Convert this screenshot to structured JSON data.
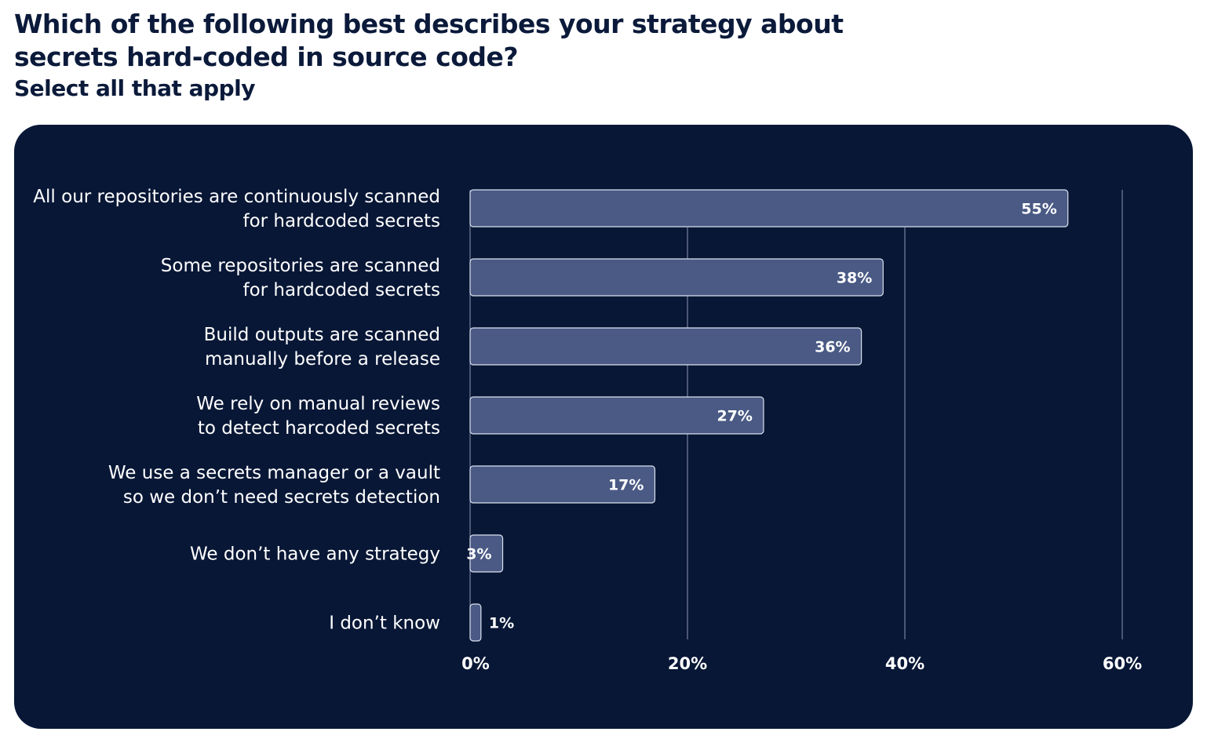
{
  "header": {
    "title": "Which of the following best describes your strategy about secrets hard-coded in source code?",
    "subtitle": "Select all that apply"
  },
  "colors": {
    "panel_background": "#081736",
    "bar_fill": "#4a5a85",
    "bar_stroke": "#dbe1ee",
    "grid": "#8b96b3",
    "text": "#ffffff"
  },
  "chart_data": {
    "type": "bar",
    "orientation": "horizontal",
    "categories": [
      [
        "All our repositories are continuously scanned",
        "for hardcoded secrets"
      ],
      [
        "Some repositories are scanned",
        "for hardcoded secrets"
      ],
      [
        "Build outputs are scanned",
        "manually before a release"
      ],
      [
        "We rely on manual reviews",
        "to detect harcoded secrets"
      ],
      [
        "We use a secrets manager or a vault",
        "so we don’t need secrets detection"
      ],
      [
        "We don’t have any strategy"
      ],
      [
        "I don’t know"
      ]
    ],
    "values": [
      55,
      38,
      36,
      27,
      17,
      3,
      1
    ],
    "value_labels": [
      "55%",
      "38%",
      "36%",
      "27%",
      "17%",
      "3%",
      "1%"
    ],
    "xlim": [
      0,
      60
    ],
    "xticks": [
      0,
      20,
      40,
      60
    ],
    "xtick_labels": [
      "0%",
      "20%",
      "40%",
      "60%"
    ],
    "grid": true
  }
}
